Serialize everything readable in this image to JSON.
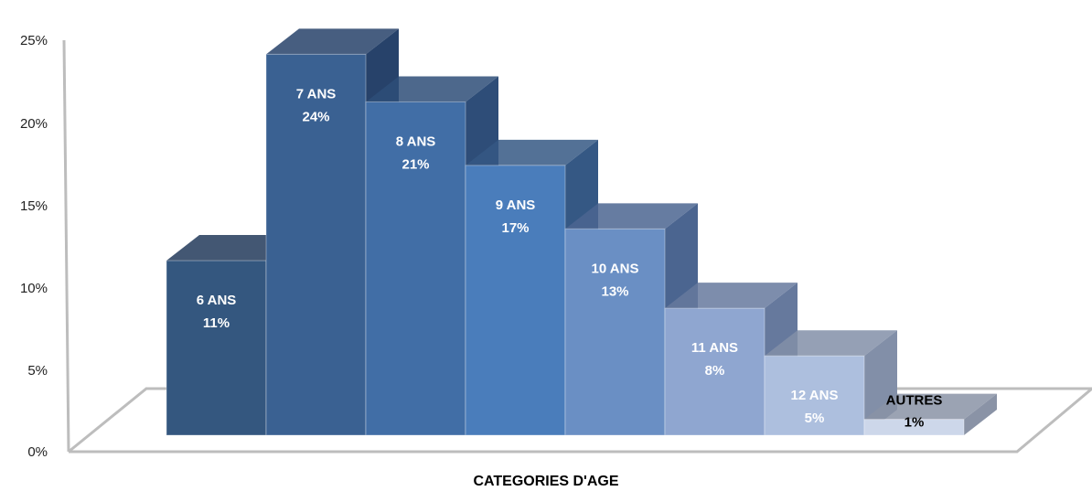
{
  "chart_data": {
    "type": "bar",
    "title": "",
    "xlabel": "CATEGORIES D'AGE",
    "ylabel": "",
    "ylim": [
      0,
      25
    ],
    "yticks": [
      "0%",
      "5%",
      "10%",
      "15%",
      "20%",
      "25%"
    ],
    "grid": false,
    "legend": "none",
    "categories": [
      "6 ANS",
      "7 ANS",
      "8 ANS",
      "9 ANS",
      "10 ANS",
      "11 ANS",
      "12 ANS",
      "AUTRES"
    ],
    "values": [
      11,
      24,
      21,
      17,
      13,
      8,
      5,
      1
    ],
    "value_labels": [
      "11%",
      "24%",
      "21%",
      "17%",
      "13%",
      "8%",
      "5%",
      "1%"
    ],
    "colors": [
      "#34577f",
      "#3a6192",
      "#416ea6",
      "#4a7dbb",
      "#6a8fc4",
      "#8fa6d0",
      "#adbfde",
      "#cdd7ea"
    ],
    "side_colors": [
      "#22395a",
      "#27426a",
      "#2e4d78",
      "#355884",
      "#4b6590",
      "#66799d",
      "#828fa8",
      "#8a93a6"
    ],
    "label_colors": [
      "#ffffff",
      "#ffffff",
      "#ffffff",
      "#ffffff",
      "#ffffff",
      "#ffffff",
      "#ffffff",
      "#000000"
    ]
  }
}
